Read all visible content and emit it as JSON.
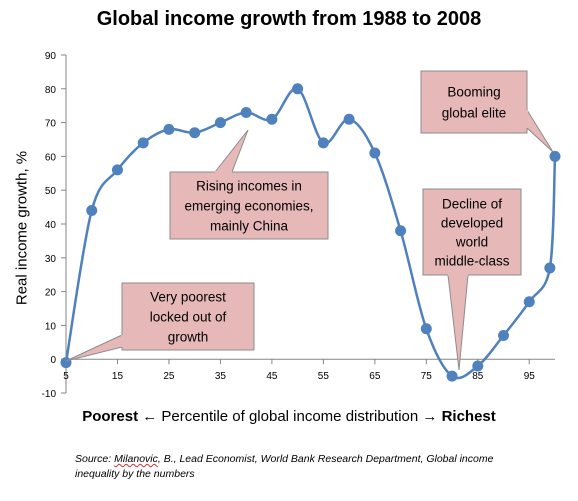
{
  "chart_data": {
    "type": "line",
    "title": "Global income growth from 1988 to 2008",
    "ylabel": "Real income growth, %",
    "xlabel": {
      "left": "Poorest",
      "left_arrow": "←",
      "middle": "Percentile of global income distribution",
      "right_arrow": "→",
      "right": "Richest"
    },
    "x_ticks": [
      "5",
      "15",
      "25",
      "35",
      "45",
      "55",
      "65",
      "75",
      "85",
      "95"
    ],
    "y_ticks": [
      "90",
      "80",
      "70",
      "60",
      "50",
      "40",
      "30",
      "20",
      "10",
      "0",
      "-10"
    ],
    "xlim": [
      5,
      100
    ],
    "ylim": [
      -10,
      90
    ],
    "grid": false,
    "smooth": true,
    "series": [
      {
        "color": "#4f81bd",
        "x": [
          5,
          10,
          15,
          20,
          25,
          30,
          35,
          40,
          45,
          50,
          55,
          60,
          65,
          70,
          75,
          80,
          85,
          90,
          95,
          99,
          100
        ],
        "y": [
          -1,
          44,
          56,
          64,
          68,
          67,
          70,
          73,
          71,
          80,
          64,
          71,
          61,
          38,
          9,
          -5,
          -2,
          7,
          17,
          27,
          60
        ]
      }
    ],
    "annotations": [
      {
        "text_lines": [
          "Very poorest",
          "locked out of",
          "growth"
        ]
      },
      {
        "text_lines": [
          "Rising incomes in",
          "emerging economies,",
          "mainly China"
        ]
      },
      {
        "text_lines": [
          "Decline of",
          "developed",
          "world",
          "middle-class"
        ]
      },
      {
        "text_lines": [
          "Booming",
          "global elite"
        ]
      }
    ]
  },
  "source": {
    "prefix": "Source: ",
    "author": "Milanovic",
    "rest": ", B., Lead Economist,  World Bank Research Department,  Global income inequality by the numbers"
  },
  "colors": {
    "line": "#4f81bd",
    "callout_fill": "#e6b9b8",
    "callout_border": "#8c8c8c",
    "axis": "#868686"
  }
}
